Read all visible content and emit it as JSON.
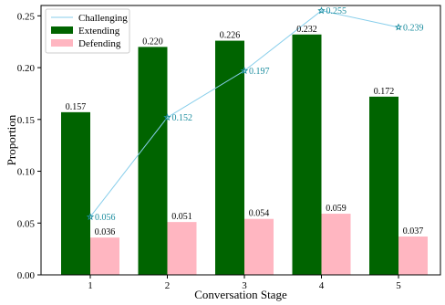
{
  "chart_data": {
    "type": "bar",
    "title": "",
    "xlabel": "Conversation Stage",
    "ylabel": "Proportion",
    "categories": [
      "1",
      "2",
      "3",
      "4",
      "5"
    ],
    "ylim": [
      0,
      0.26
    ],
    "yticks": [
      0.0,
      0.05,
      0.1,
      0.15,
      0.2,
      0.25
    ],
    "ytick_labels": [
      "0.00",
      "0.05",
      "0.10",
      "0.15",
      "0.20",
      "0.25"
    ],
    "grid": false,
    "legend_position": "top-left",
    "series": [
      {
        "name": "Challenging",
        "kind": "line",
        "marker": "star",
        "color": "#87ceeb",
        "label_color": "#1a8c9e",
        "values": [
          0.056,
          0.152,
          0.197,
          0.255,
          0.239
        ],
        "labels": [
          "0.056",
          "0.152",
          "0.197",
          "0.255",
          "0.239"
        ]
      },
      {
        "name": "Extending",
        "kind": "bar",
        "color": "#006400",
        "values": [
          0.157,
          0.22,
          0.226,
          0.232,
          0.172
        ],
        "labels": [
          "0.157",
          "0.220",
          "0.226",
          "0.232",
          "0.172"
        ]
      },
      {
        "name": "Defending",
        "kind": "bar",
        "color": "#ffb6c1",
        "values": [
          0.036,
          0.051,
          0.054,
          0.059,
          0.037
        ],
        "labels": [
          "0.036",
          "0.051",
          "0.054",
          "0.059",
          "0.037"
        ]
      }
    ]
  }
}
